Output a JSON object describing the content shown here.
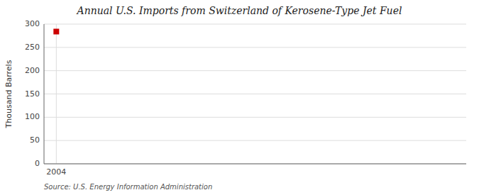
{
  "chart_data": {
    "type": "line",
    "title": "Annual U.S. Imports from Switzerland of Kerosene-Type Jet Fuel",
    "y_label": "Thousand Barrels",
    "source": "Source: U.S. Energy Information Administration",
    "x": [
      2004
    ],
    "values": [
      284
    ],
    "color": "#cc0000",
    "marker": "square",
    "line_style": "solid",
    "xlim": [
      2003.4,
      2024
    ],
    "ylim": [
      0,
      300
    ],
    "xticks": [
      2004
    ],
    "yticks": [
      0,
      50,
      100,
      150,
      200,
      250,
      300
    ],
    "grid": true
  }
}
